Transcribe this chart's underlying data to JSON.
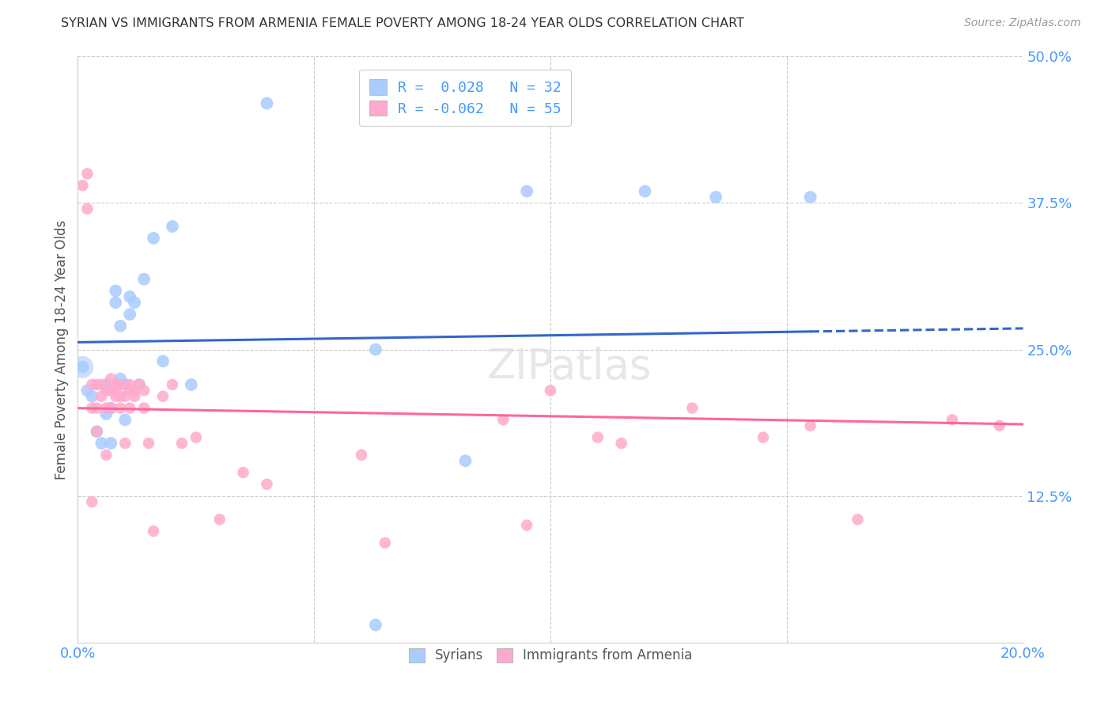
{
  "title": "SYRIAN VS IMMIGRANTS FROM ARMENIA FEMALE POVERTY AMONG 18-24 YEAR OLDS CORRELATION CHART",
  "source": "Source: ZipAtlas.com",
  "ylabel": "Female Poverty Among 18-24 Year Olds",
  "xlim": [
    0,
    0.2
  ],
  "ylim": [
    0,
    0.5
  ],
  "ytick_positions": [
    0.125,
    0.25,
    0.375,
    0.5
  ],
  "ytick_labels": [
    "12.5%",
    "25.0%",
    "37.5%",
    "50.0%"
  ],
  "background_color": "#ffffff",
  "grid_color": "#cccccc",
  "title_color": "#333333",
  "syrian_color": "#aaccff",
  "armenian_color": "#ffaacc",
  "syrian_line_color": "#3366cc",
  "armenian_line_color": "#ff6699",
  "syrian_R": 0.028,
  "armenian_R": -0.062,
  "syrian_N": 32,
  "armenian_N": 55,
  "syrian_x": [
    0.001,
    0.002,
    0.003,
    0.004,
    0.005,
    0.006,
    0.006,
    0.007,
    0.007,
    0.008,
    0.008,
    0.009,
    0.009,
    0.01,
    0.01,
    0.011,
    0.011,
    0.012,
    0.013,
    0.014,
    0.016,
    0.018,
    0.02,
    0.024,
    0.04,
    0.063,
    0.063,
    0.082,
    0.095,
    0.12,
    0.135,
    0.155
  ],
  "syrian_y": [
    0.235,
    0.215,
    0.21,
    0.18,
    0.17,
    0.195,
    0.22,
    0.17,
    0.2,
    0.3,
    0.29,
    0.225,
    0.27,
    0.19,
    0.22,
    0.28,
    0.295,
    0.29,
    0.22,
    0.31,
    0.345,
    0.24,
    0.355,
    0.22,
    0.46,
    0.25,
    0.015,
    0.155,
    0.385,
    0.385,
    0.38,
    0.38
  ],
  "armenian_x": [
    0.001,
    0.002,
    0.002,
    0.003,
    0.003,
    0.003,
    0.004,
    0.004,
    0.004,
    0.005,
    0.005,
    0.006,
    0.006,
    0.006,
    0.007,
    0.007,
    0.007,
    0.008,
    0.008,
    0.008,
    0.009,
    0.009,
    0.009,
    0.01,
    0.01,
    0.011,
    0.011,
    0.011,
    0.012,
    0.012,
    0.013,
    0.014,
    0.014,
    0.015,
    0.016,
    0.018,
    0.02,
    0.022,
    0.025,
    0.03,
    0.035,
    0.04,
    0.06,
    0.065,
    0.09,
    0.095,
    0.1,
    0.11,
    0.115,
    0.13,
    0.145,
    0.155,
    0.165,
    0.185,
    0.195
  ],
  "armenian_y": [
    0.39,
    0.4,
    0.37,
    0.22,
    0.2,
    0.12,
    0.22,
    0.2,
    0.18,
    0.21,
    0.22,
    0.215,
    0.2,
    0.16,
    0.225,
    0.215,
    0.2,
    0.21,
    0.22,
    0.215,
    0.22,
    0.21,
    0.2,
    0.21,
    0.17,
    0.215,
    0.22,
    0.2,
    0.215,
    0.21,
    0.22,
    0.215,
    0.2,
    0.17,
    0.095,
    0.21,
    0.22,
    0.17,
    0.175,
    0.105,
    0.145,
    0.135,
    0.16,
    0.085,
    0.19,
    0.1,
    0.215,
    0.175,
    0.17,
    0.2,
    0.175,
    0.185,
    0.105,
    0.19,
    0.185
  ]
}
